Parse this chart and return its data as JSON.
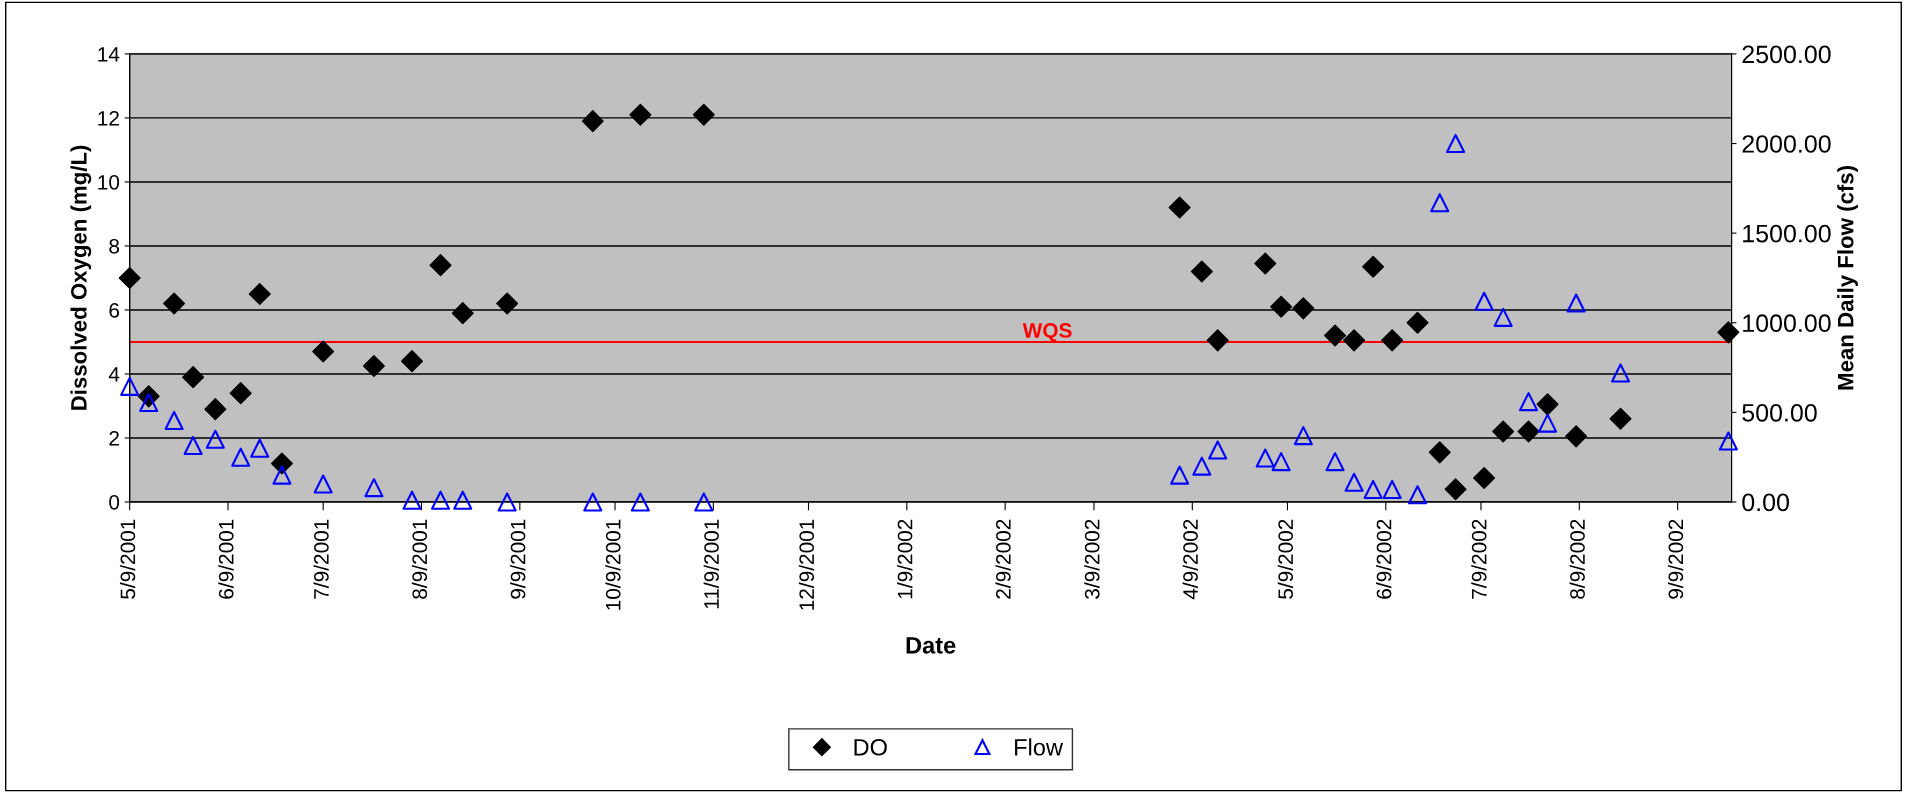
{
  "chart_data": {
    "type": "scatter",
    "xlabel": "Date",
    "ylabel": "Dissolved Oxygen (mg/L)",
    "y2label": "Mean Daily Flow (cfs)",
    "x": [
      "2001-05-09",
      "2001-05-15",
      "2001-05-23",
      "2001-05-29",
      "2001-06-05",
      "2001-06-13",
      "2001-06-19",
      "2001-06-26",
      "2001-07-09",
      "2001-07-25",
      "2001-08-06",
      "2001-08-15",
      "2001-08-22",
      "2001-09-05",
      "2001-10-02",
      "2001-10-17",
      "2001-11-06",
      "2002-04-05",
      "2002-04-12",
      "2002-04-17",
      "2002-05-02",
      "2002-05-07",
      "2002-05-14",
      "2002-05-24",
      "2002-05-30",
      "2002-06-05",
      "2002-06-11",
      "2002-06-19",
      "2002-06-26",
      "2002-07-01",
      "2002-07-10",
      "2002-07-16",
      "2002-07-24",
      "2002-07-30",
      "2002-08-08",
      "2002-08-22",
      "2002-09-25"
    ],
    "series": [
      {
        "name": "DO",
        "color": "#000000",
        "marker": "diamond",
        "values": [
          7.0,
          3.3,
          6.2,
          3.9,
          2.9,
          3.4,
          6.5,
          1.2,
          4.7,
          4.25,
          4.4,
          7.4,
          5.9,
          6.2,
          11.9,
          12.1,
          12.1,
          9.2,
          7.2,
          5.05,
          7.45,
          6.1,
          6.05,
          5.2,
          5.05,
          7.35,
          5.05,
          5.6,
          1.55,
          0.4,
          0.75,
          2.2,
          2.2,
          3.05,
          2.05,
          2.6,
          5.3
        ]
      },
      {
        "name": "Flow",
        "color": "#0000ff",
        "marker": "triangle",
        "axis": "y2",
        "values": [
          645,
          555,
          455,
          315,
          350,
          250,
          300,
          150,
          100,
          80,
          10,
          10,
          10,
          0,
          0,
          0,
          0,
          150,
          200,
          290,
          245,
          225,
          370,
          225,
          110,
          70,
          70,
          40,
          1670,
          2000,
          1120,
          1030,
          560,
          440,
          1110,
          720,
          340
        ]
      }
    ],
    "xlim": [
      "2001-05-09",
      "2002-09-26"
    ],
    "xticks": [
      {
        "value": "2001-05-09",
        "label": "5/9/2001"
      },
      {
        "value": "2001-06-09",
        "label": "6/9/2001"
      },
      {
        "value": "2001-07-09",
        "label": "7/9/2001"
      },
      {
        "value": "2001-08-09",
        "label": "8/9/2001"
      },
      {
        "value": "2001-09-09",
        "label": "9/9/2001"
      },
      {
        "value": "2001-10-09",
        "label": "10/9/2001"
      },
      {
        "value": "2001-11-09",
        "label": "11/9/2001"
      },
      {
        "value": "2001-12-09",
        "label": "12/9/2001"
      },
      {
        "value": "2002-01-09",
        "label": "1/9/2002"
      },
      {
        "value": "2002-02-09",
        "label": "2/9/2002"
      },
      {
        "value": "2002-03-09",
        "label": "3/9/2002"
      },
      {
        "value": "2002-04-09",
        "label": "4/9/2002"
      },
      {
        "value": "2002-05-09",
        "label": "5/9/2002"
      },
      {
        "value": "2002-06-09",
        "label": "6/9/2002"
      },
      {
        "value": "2002-07-09",
        "label": "7/9/2002"
      },
      {
        "value": "2002-08-09",
        "label": "8/9/2002"
      },
      {
        "value": "2002-09-09",
        "label": "9/9/2002"
      }
    ],
    "ylim": [
      0,
      14
    ],
    "yticks": [
      0,
      2,
      4,
      6,
      8,
      10,
      12,
      14
    ],
    "y2lim": [
      0,
      2500
    ],
    "y2ticks": [
      {
        "value": 0,
        "label": "0.00"
      },
      {
        "value": 500,
        "label": "500.00"
      },
      {
        "value": 1000,
        "label": "1000.00"
      },
      {
        "value": 1500,
        "label": "1500.00"
      },
      {
        "value": 2000,
        "label": "2000.00"
      },
      {
        "value": 2500,
        "label": "2500.00"
      }
    ],
    "ref_lines": [
      {
        "axis": "y",
        "value": 5,
        "label": "WQS",
        "color": "#ff0000"
      }
    ],
    "grid": "y",
    "legend": "bottom"
  }
}
